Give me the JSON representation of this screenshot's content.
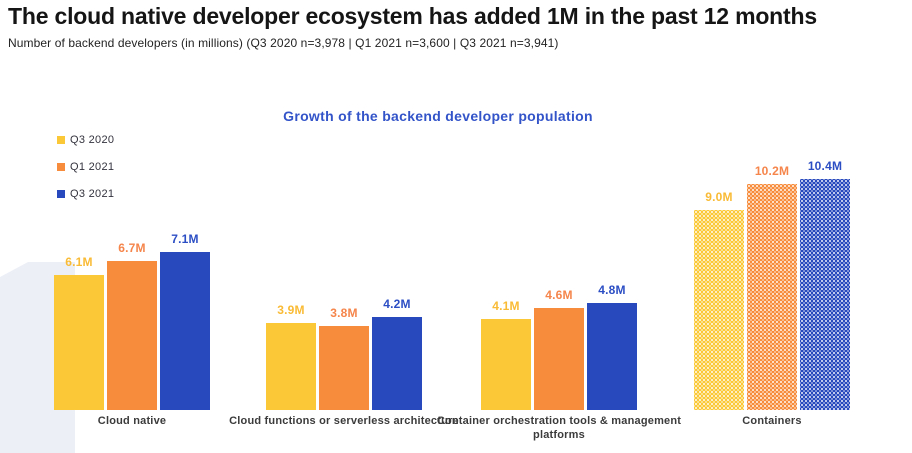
{
  "page": {
    "title": "The cloud native developer ecosystem has added 1M in the past 12 months",
    "subtitle": "Number of backend developers (in millions) (Q3 2020 n=3,978 | Q1 2021 n=3,600 | Q3 2021 n=3,941)"
  },
  "chart_data": {
    "type": "bar",
    "title": "Growth of the backend developer population",
    "title_color": "#3354C9",
    "categories": [
      "Cloud native",
      "Cloud functions or serverless architecture",
      "Container orchestration tools & management platforms",
      "Containers"
    ],
    "series": [
      {
        "name": "Q3 2020",
        "color": "#FBC937",
        "label_color": "#F9BB35",
        "values": [
          6.1,
          3.9,
          4.1,
          9.0
        ]
      },
      {
        "name": "Q1 2021",
        "color": "#F78D3C",
        "label_color": "#F5854B",
        "values": [
          6.7,
          3.8,
          4.6,
          10.2
        ]
      },
      {
        "name": "Q3 2021",
        "color": "#2848BE",
        "label_color": "#2C4EC4",
        "values": [
          7.1,
          4.2,
          4.8,
          10.4
        ]
      }
    ],
    "labels": [
      [
        "6.1M",
        "3.9M",
        "4.1M",
        "9.0M"
      ],
      [
        "6.7M",
        "3.8M",
        "4.6M",
        "10.2M"
      ],
      [
        "7.1M",
        "4.2M",
        "4.8M",
        "10.4M"
      ]
    ],
    "unit": "M",
    "ylim": [
      0,
      11
    ],
    "grid": false,
    "legend_position": "top-left",
    "dotted_pattern_category": "Containers",
    "watermark_text": "1",
    "watermark_color": "#EDEFF7"
  }
}
